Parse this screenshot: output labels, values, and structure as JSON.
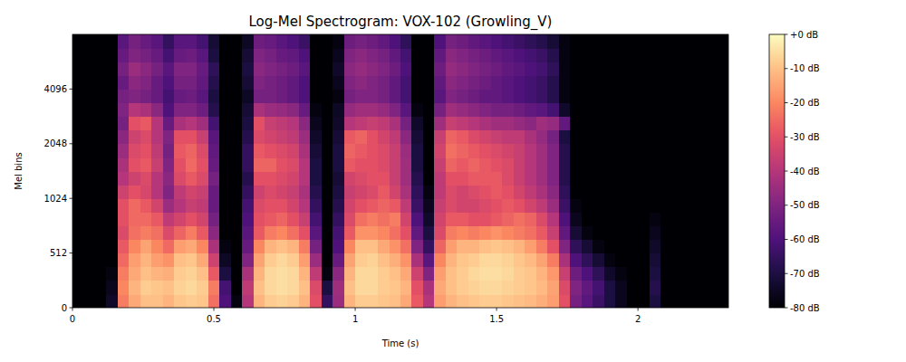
{
  "chart_data": {
    "type": "heatmap",
    "title": "Log-Mel Spectrogram: VOX-102 (Growling_V)",
    "x_label": "Time (s)",
    "y_label": "Mel bins",
    "xlim": [
      0,
      2.32
    ],
    "xticks": [
      0,
      0.5,
      1,
      1.5,
      2
    ],
    "ylim": [
      0,
      8192
    ],
    "yticks": [
      0,
      512,
      1024,
      2048,
      4096
    ],
    "log": "y",
    "x_bins": [
      0,
      0.04,
      0.08,
      0.12,
      0.16,
      0.2,
      0.24,
      0.28,
      0.32,
      0.36,
      0.4,
      0.44,
      0.48,
      0.52,
      0.56,
      0.6,
      0.64,
      0.68,
      0.72,
      0.76,
      0.8,
      0.84,
      0.88,
      0.92,
      0.96,
      1,
      1.04,
      1.08,
      1.12,
      1.16,
      1.2,
      1.24,
      1.28,
      1.32,
      1.36,
      1.4,
      1.44,
      1.48,
      1.52,
      1.56,
      1.6,
      1.64,
      1.68,
      1.72,
      1.76,
      1.8,
      1.84,
      1.88,
      1.92,
      1.96,
      2,
      2.04,
      2.08,
      2.12,
      2.16,
      2.2,
      2.24,
      2.28,
      2.32
    ],
    "y_bins": [
      0,
      128,
      256,
      384,
      512,
      609,
      724,
      861,
      1024,
      1218,
      1448,
      1722,
      2048,
      2435,
      2896,
      3444,
      4096,
      4871,
      5793,
      6889,
      8192
    ],
    "cells": [
      [
        -80,
        -80,
        -80,
        -80,
        -80,
        -80,
        -80,
        -80,
        -80,
        -80,
        -80,
        -80,
        -80,
        -80,
        -80,
        -80,
        -80,
        -80,
        -80,
        -80
      ],
      [
        -80,
        -80,
        -80,
        -80,
        -80,
        -80,
        -80,
        -80,
        -80,
        -80,
        -80,
        -80,
        -80,
        -80,
        -80,
        -80,
        -80,
        -80,
        -80,
        -80
      ],
      [
        -80,
        -80,
        -80,
        -80,
        -80,
        -80,
        -80,
        -80,
        -80,
        -80,
        -80,
        -80,
        -80,
        -80,
        -80,
        -80,
        -80,
        -80,
        -80,
        -80
      ],
      [
        -74,
        -76,
        -78,
        -80,
        -80,
        -80,
        -80,
        -80,
        -80,
        -80,
        -80,
        -80,
        -80,
        -80,
        -80,
        -80,
        -80,
        -80,
        -80,
        -80
      ],
      [
        -22,
        -20,
        -22,
        -25,
        -28,
        -32,
        -30,
        -30,
        -35,
        -40,
        -42,
        -45,
        -48,
        -52,
        -50,
        -52,
        -55,
        -52,
        -55,
        -58
      ],
      [
        -14,
        -12,
        -14,
        -16,
        -20,
        -24,
        -25,
        -25,
        -30,
        -35,
        -30,
        -32,
        -35,
        -30,
        -40,
        -50,
        -48,
        -45,
        -50,
        -52
      ],
      [
        -10,
        -8,
        -10,
        -12,
        -15,
        -22,
        -25,
        -28,
        -33,
        -32,
        -28,
        -30,
        -32,
        -28,
        -42,
        -52,
        -50,
        -48,
        -52,
        -55
      ],
      [
        -10,
        -9,
        -12,
        -16,
        -20,
        -24,
        -28,
        -34,
        -40,
        -40,
        -36,
        -38,
        -40,
        -40,
        -48,
        -55,
        -55,
        -52,
        -55,
        -58
      ],
      [
        -12,
        -10,
        -13,
        -18,
        -25,
        -32,
        -38,
        -45,
        -50,
        -48,
        -50,
        -52,
        -50,
        -55,
        -60,
        -62,
        -60,
        -58,
        -62,
        -65
      ],
      [
        -9,
        -7,
        -8,
        -10,
        -16,
        -26,
        -34,
        -40,
        -38,
        -32,
        -30,
        -28,
        -30,
        -42,
        -50,
        -55,
        -52,
        -50,
        -55,
        -58
      ],
      [
        -8,
        -6,
        -7,
        -9,
        -14,
        -22,
        -30,
        -36,
        -34,
        -28,
        -25,
        -26,
        -30,
        -40,
        -50,
        -54,
        -52,
        -50,
        -54,
        -58
      ],
      [
        -9,
        -8,
        -10,
        -14,
        -20,
        -28,
        -34,
        -38,
        -36,
        -32,
        -30,
        -32,
        -36,
        -44,
        -54,
        -58,
        -56,
        -55,
        -58,
        -62
      ],
      [
        -24,
        -22,
        -28,
        -35,
        -42,
        -48,
        -52,
        -55,
        -55,
        -52,
        -55,
        -56,
        -58,
        -62,
        -68,
        -70,
        -68,
        -66,
        -70,
        -72
      ],
      [
        -60,
        -62,
        -70,
        -75,
        -78,
        -80,
        -80,
        -80,
        -80,
        -80,
        -80,
        -80,
        -80,
        -80,
        -80,
        -80,
        -80,
        -80,
        -80,
        -80
      ],
      [
        -78,
        -80,
        -80,
        -80,
        -80,
        -80,
        -80,
        -80,
        -80,
        -80,
        -80,
        -80,
        -80,
        -80,
        -80,
        -80,
        -80,
        -80,
        -80,
        -80
      ],
      [
        -40,
        -38,
        -42,
        -50,
        -55,
        -58,
        -60,
        -62,
        -65,
        -68,
        -65,
        -65,
        -68,
        -70,
        -72,
        -75,
        -72,
        -70,
        -72,
        -75
      ],
      [
        -12,
        -10,
        -12,
        -15,
        -20,
        -28,
        -30,
        -32,
        -35,
        -30,
        -26,
        -28,
        -32,
        -30,
        -42,
        -52,
        -50,
        -48,
        -50,
        -54
      ],
      [
        -8,
        -6,
        -6,
        -8,
        -12,
        -22,
        -28,
        -30,
        -32,
        -30,
        -26,
        -30,
        -34,
        -36,
        -45,
        -52,
        -52,
        -50,
        -52,
        -55
      ],
      [
        -7,
        -5,
        -5,
        -6,
        -10,
        -20,
        -26,
        -30,
        -34,
        -32,
        -30,
        -32,
        -36,
        -38,
        -46,
        -54,
        -54,
        -52,
        -55,
        -58
      ],
      [
        -8,
        -6,
        -6,
        -8,
        -12,
        -24,
        -30,
        -34,
        -36,
        -34,
        -32,
        -34,
        -38,
        -40,
        -48,
        -56,
        -56,
        -54,
        -56,
        -60
      ],
      [
        -12,
        -10,
        -12,
        -16,
        -22,
        -30,
        -36,
        -40,
        -42,
        -40,
        -40,
        -42,
        -45,
        -48,
        -55,
        -60,
        -60,
        -58,
        -60,
        -64
      ],
      [
        -30,
        -32,
        -38,
        -45,
        -52,
        -58,
        -62,
        -65,
        -68,
        -70,
        -70,
        -72,
        -74,
        -76,
        -78,
        -80,
        -80,
        -80,
        -80,
        -80
      ],
      [
        -65,
        -70,
        -78,
        -80,
        -80,
        -80,
        -80,
        -80,
        -80,
        -80,
        -80,
        -80,
        -80,
        -80,
        -80,
        -80,
        -80,
        -80,
        -80,
        -80
      ],
      [
        -45,
        -44,
        -48,
        -55,
        -60,
        -62,
        -65,
        -68,
        -70,
        -72,
        -70,
        -70,
        -72,
        -74,
        -75,
        -78,
        -76,
        -74,
        -76,
        -78
      ],
      [
        -12,
        -10,
        -12,
        -15,
        -20,
        -28,
        -32,
        -34,
        -36,
        -34,
        -28,
        -26,
        -28,
        -40,
        -46,
        -52,
        -50,
        -48,
        -50,
        -54
      ],
      [
        -8,
        -6,
        -6,
        -8,
        -10,
        -18,
        -24,
        -30,
        -34,
        -32,
        -30,
        -28,
        -26,
        -38,
        -44,
        -50,
        -48,
        -46,
        -48,
        -52
      ],
      [
        -8,
        -6,
        -6,
        -7,
        -10,
        -18,
        -22,
        -28,
        -32,
        -30,
        -30,
        -30,
        -30,
        -36,
        -44,
        -50,
        -50,
        -48,
        -50,
        -54
      ],
      [
        -9,
        -8,
        -8,
        -10,
        -14,
        -20,
        -24,
        -26,
        -28,
        -30,
        -32,
        -32,
        -34,
        -38,
        -46,
        -52,
        -52,
        -50,
        -52,
        -56
      ],
      [
        -10,
        -9,
        -10,
        -13,
        -18,
        -24,
        -22,
        -28,
        -34,
        -36,
        -36,
        -36,
        -38,
        -42,
        -50,
        -56,
        -56,
        -54,
        -56,
        -60
      ],
      [
        -14,
        -12,
        -14,
        -18,
        -24,
        -30,
        -34,
        -38,
        -42,
        -44,
        -44,
        -45,
        -48,
        -52,
        -58,
        -62,
        -62,
        -60,
        -62,
        -66
      ],
      [
        -28,
        -30,
        -35,
        -42,
        -50,
        -56,
        -60,
        -64,
        -66,
        -68,
        -70,
        -70,
        -72,
        -74,
        -78,
        -80,
        -80,
        -80,
        -80,
        -80
      ],
      [
        -40,
        -42,
        -50,
        -58,
        -65,
        -70,
        -74,
        -76,
        -78,
        -80,
        -80,
        -80,
        -80,
        -80,
        -80,
        -80,
        -80,
        -80,
        -80,
        -80
      ],
      [
        -16,
        -14,
        -16,
        -20,
        -26,
        -32,
        -34,
        -36,
        -38,
        -38,
        -36,
        -34,
        -36,
        -44,
        -52,
        -58,
        -56,
        -54,
        -56,
        -60
      ],
      [
        -12,
        -10,
        -10,
        -12,
        -16,
        -22,
        -28,
        -32,
        -32,
        -30,
        -26,
        -24,
        -26,
        -36,
        -44,
        -50,
        -48,
        -46,
        -48,
        -52
      ],
      [
        -10,
        -8,
        -8,
        -9,
        -12,
        -20,
        -28,
        -34,
        -34,
        -30,
        -28,
        -26,
        -28,
        -38,
        -46,
        -52,
        -50,
        -48,
        -50,
        -54
      ],
      [
        -9,
        -7,
        -6,
        -8,
        -12,
        -22,
        -30,
        -34,
        -32,
        -28,
        -26,
        -28,
        -32,
        -40,
        -48,
        -54,
        -52,
        -50,
        -52,
        -56
      ],
      [
        -8,
        -6,
        -5,
        -6,
        -10,
        -20,
        -30,
        -32,
        -30,
        -28,
        -28,
        -30,
        -34,
        -42,
        -50,
        -56,
        -54,
        -52,
        -54,
        -58
      ],
      [
        -8,
        -6,
        -5,
        -6,
        -9,
        -18,
        -28,
        -30,
        -28,
        -28,
        -30,
        -32,
        -36,
        -44,
        -52,
        -56,
        -56,
        -54,
        -56,
        -60
      ],
      [
        -9,
        -7,
        -6,
        -7,
        -10,
        -20,
        -26,
        -28,
        -30,
        -32,
        -32,
        -34,
        -38,
        -44,
        -52,
        -58,
        -58,
        -56,
        -58,
        -62
      ],
      [
        -10,
        -8,
        -8,
        -9,
        -12,
        -22,
        -24,
        -30,
        -34,
        -36,
        -36,
        -36,
        -38,
        -46,
        -54,
        -60,
        -60,
        -58,
        -60,
        -64
      ],
      [
        -11,
        -9,
        -9,
        -11,
        -16,
        -24,
        -26,
        -34,
        -38,
        -40,
        -40,
        -40,
        -42,
        -48,
        -56,
        -62,
        -62,
        -60,
        -62,
        -66
      ],
      [
        -13,
        -11,
        -12,
        -15,
        -22,
        -28,
        -32,
        -38,
        -42,
        -44,
        -44,
        -44,
        -46,
        -44,
        -58,
        -64,
        -64,
        -62,
        -64,
        -68
      ],
      [
        -16,
        -15,
        -17,
        -22,
        -30,
        -36,
        -40,
        -45,
        -48,
        -50,
        -50,
        -50,
        -52,
        -46,
        -62,
        -68,
        -68,
        -66,
        -68,
        -72
      ],
      [
        -30,
        -32,
        -36,
        -42,
        -50,
        -56,
        -60,
        -64,
        -66,
        -68,
        -68,
        -68,
        -70,
        -56,
        -74,
        -78,
        -78,
        -78,
        -78,
        -78
      ],
      [
        -52,
        -50,
        -54,
        -60,
        -66,
        -72,
        -76,
        -78,
        -80,
        -80,
        -80,
        -80,
        -80,
        -80,
        -80,
        -80,
        -80,
        -80,
        -80,
        -80
      ],
      [
        -58,
        -56,
        -60,
        -66,
        -72,
        -78,
        -80,
        -80,
        -80,
        -80,
        -80,
        -80,
        -80,
        -80,
        -80,
        -80,
        -80,
        -80,
        -80,
        -80
      ],
      [
        -64,
        -62,
        -66,
        -72,
        -78,
        -80,
        -80,
        -80,
        -80,
        -80,
        -80,
        -80,
        -80,
        -80,
        -80,
        -80,
        -80,
        -80,
        -80,
        -80
      ],
      [
        -70,
        -70,
        -74,
        -78,
        -80,
        -80,
        -80,
        -80,
        -80,
        -80,
        -80,
        -80,
        -80,
        -80,
        -80,
        -80,
        -80,
        -80,
        -80,
        -80
      ],
      [
        -76,
        -76,
        -78,
        -80,
        -80,
        -80,
        -80,
        -80,
        -80,
        -80,
        -80,
        -80,
        -80,
        -80,
        -80,
        -80,
        -80,
        -80,
        -80,
        -80
      ],
      [
        -80,
        -80,
        -80,
        -80,
        -80,
        -80,
        -80,
        -80,
        -80,
        -80,
        -80,
        -80,
        -80,
        -80,
        -80,
        -80,
        -80,
        -80,
        -80,
        -80
      ],
      [
        -80,
        -80,
        -80,
        -80,
        -80,
        -80,
        -80,
        -80,
        -80,
        -80,
        -80,
        -80,
        -80,
        -80,
        -80,
        -80,
        -80,
        -80,
        -80,
        -80
      ],
      [
        -70,
        -68,
        -70,
        -72,
        -74,
        -76,
        -78,
        -80,
        -80,
        -80,
        -80,
        -80,
        -80,
        -80,
        -80,
        -80,
        -80,
        -80,
        -80,
        -80
      ],
      [
        -80,
        -80,
        -80,
        -80,
        -80,
        -80,
        -80,
        -80,
        -80,
        -80,
        -80,
        -80,
        -80,
        -80,
        -80,
        -80,
        -80,
        -80,
        -80,
        -80
      ],
      [
        -80,
        -80,
        -80,
        -80,
        -80,
        -80,
        -80,
        -80,
        -80,
        -80,
        -80,
        -80,
        -80,
        -80,
        -80,
        -80,
        -80,
        -80,
        -80,
        -80
      ],
      [
        -80,
        -80,
        -80,
        -80,
        -80,
        -80,
        -80,
        -80,
        -80,
        -80,
        -80,
        -80,
        -80,
        -80,
        -80,
        -80,
        -80,
        -80,
        -80,
        -80
      ],
      [
        -80,
        -80,
        -80,
        -80,
        -80,
        -80,
        -80,
        -80,
        -80,
        -80,
        -80,
        -80,
        -80,
        -80,
        -80,
        -80,
        -80,
        -80,
        -80,
        -80
      ],
      [
        -80,
        -80,
        -80,
        -80,
        -80,
        -80,
        -80,
        -80,
        -80,
        -80,
        -80,
        -80,
        -80,
        -80,
        -80,
        -80,
        -80,
        -80,
        -80,
        -80
      ],
      [
        -80,
        -80,
        -80,
        -80,
        -80,
        -80,
        -80,
        -80,
        -80,
        -80,
        -80,
        -80,
        -80,
        -80,
        -80,
        -80,
        -80,
        -80,
        -80,
        -80
      ]
    ],
    "colorbar": {
      "range": [
        -80,
        0
      ],
      "ticks": [
        {
          "value": 0,
          "label": "+0 dB"
        },
        {
          "value": -10,
          "label": "-10 dB"
        },
        {
          "value": -20,
          "label": "-20 dB"
        },
        {
          "value": -30,
          "label": "-30 dB"
        },
        {
          "value": -40,
          "label": "-40 dB"
        },
        {
          "value": -50,
          "label": "-50 dB"
        },
        {
          "value": -60,
          "label": "-60 dB"
        },
        {
          "value": -70,
          "label": "-70 dB"
        },
        {
          "value": -80,
          "label": "-80 dB"
        }
      ]
    }
  }
}
